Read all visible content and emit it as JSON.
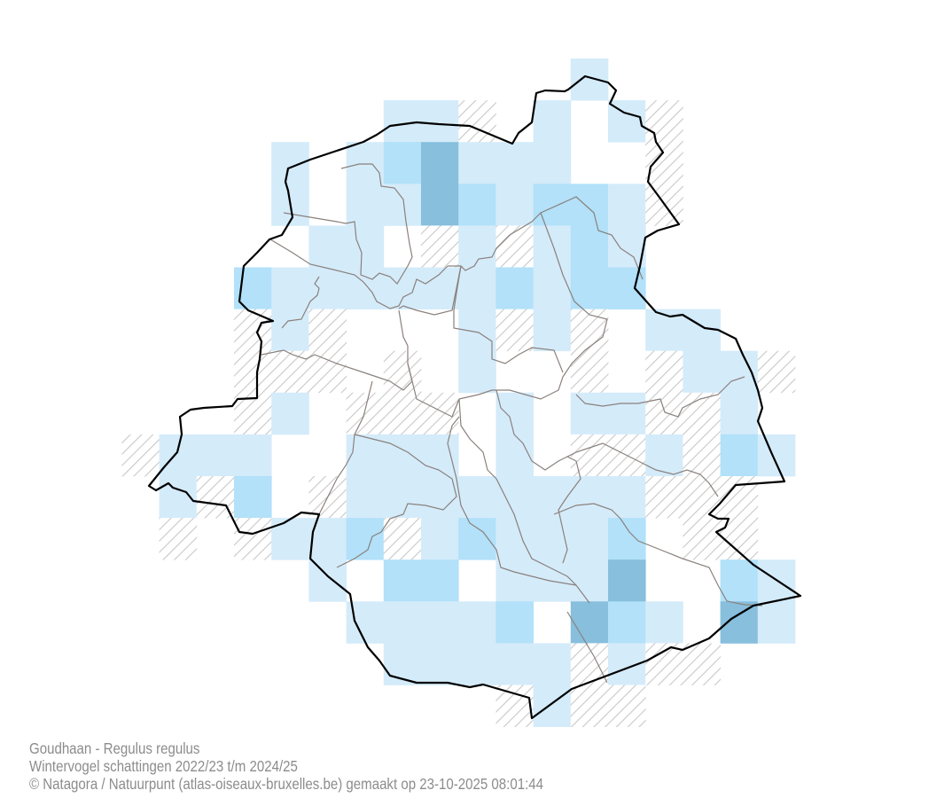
{
  "map": {
    "legend_colors": {
      "L": "#d4ebfa",
      "M": "#b2e1f9",
      "D": "#87bfdd",
      "H": "hatched"
    },
    "hatch_color": "#c8c8c8",
    "boundary_color": "#000000",
    "municipality_line_color": "#8a817c",
    "grid_rows": [
      "............L......",
      ".......LLH.L.LH....",
      "....L.LMDLLL..H....",
      "....L.LLDMLMMLH....",
      ".....LL.HLHLML.....",
      "...MLLLLLLMLMM.....",
      "...HLH...LHLH.LL...",
      "...HHH.H.L..H.HLLH.",
      "...HL.HHH.L.LLHHL..",
      "HLLL..LLL.L.HHLHML.",
      ".LHM.HLLLLLLLLHHH..",
      ".H.HLLMHLMLLLM.HH..",
      ".....L.MM.LLLD..ML.",
      "......LLLLM.DML.DL.",
      ".......LLLLLHLHH...",
      "..........HLHH....."
    ]
  },
  "caption": {
    "title": "Goudhaan - Regulus regulus",
    "subtitle": "Wintervogel schattingen 2022/23 t/m 2024/25",
    "credit": "© Natagora / Natuurpunt (atlas-oiseaux-bruxelles.be) gemaakt op 23-10-2025 08:01:44"
  }
}
